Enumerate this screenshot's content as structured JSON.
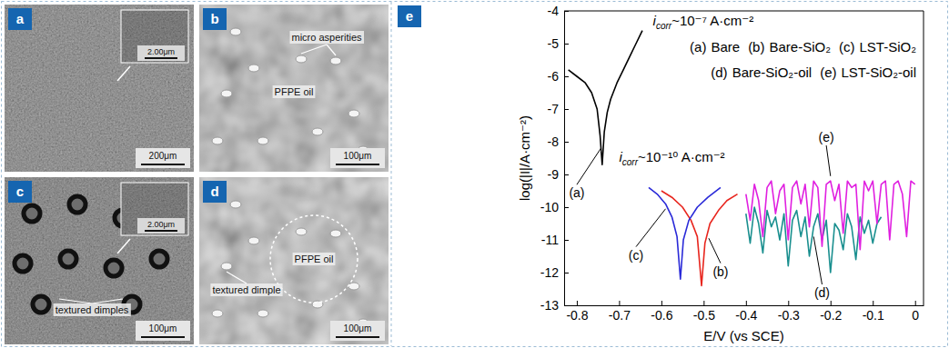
{
  "figure": {
    "panels": [
      {
        "letter": "a",
        "scale_bar": "200μm",
        "inset_scale_bar": "2.00μm",
        "labels": []
      },
      {
        "letter": "b",
        "scale_bar": "100μm",
        "labels": [
          "micro asperities",
          "PFPE oil"
        ]
      },
      {
        "letter": "c",
        "scale_bar": "100μm",
        "inset_scale_bar": "2.00μm",
        "labels": [
          "textured dimples"
        ]
      },
      {
        "letter": "d",
        "scale_bar": "100μm",
        "labels": [
          "textured dimple",
          "PFPE oil"
        ]
      }
    ],
    "chart_panel_letter": "e"
  },
  "chart_data": {
    "type": "line",
    "x_label": "E/V (vs SCE)",
    "y_label": "log(|I|/A·cm⁻²)",
    "xlim": [
      -0.83,
      0.02
    ],
    "xticks": [
      -0.8,
      -0.7,
      -0.6,
      -0.5,
      -0.4,
      -0.3,
      -0.2,
      -0.1,
      0
    ],
    "ylim": [
      -13,
      -4
    ],
    "yticks": [
      -4,
      -5,
      -6,
      -7,
      -8,
      -9,
      -10,
      -11,
      -12,
      -13
    ],
    "legend": "upper right",
    "annotations": [
      {
        "parts": [
          "i",
          "corr",
          "~10⁻⁷ A·cm⁻²"
        ]
      },
      {
        "parts": [
          "i",
          "corr",
          "~10⁻¹⁰ A·cm⁻²"
        ]
      }
    ],
    "series": [
      {
        "label": "(a)",
        "name": "Bare",
        "color": "#000000",
        "x": [
          -0.82,
          -0.8,
          -0.78,
          -0.765,
          -0.752,
          -0.745,
          -0.74,
          -0.735,
          -0.728,
          -0.72,
          -0.705,
          -0.69,
          -0.675,
          -0.66,
          -0.645
        ],
        "values": [
          -5.8,
          -6.0,
          -6.2,
          -6.5,
          -7.0,
          -7.8,
          -8.7,
          -7.7,
          -7.1,
          -6.7,
          -6.2,
          -5.8,
          -5.4,
          -5.0,
          -4.6
        ]
      },
      {
        "label": "(b)",
        "name": "Bare-SiO₂",
        "color": "#e8261e",
        "x": [
          -0.6,
          -0.575,
          -0.55,
          -0.53,
          -0.515,
          -0.505,
          -0.497,
          -0.485,
          -0.465,
          -0.445,
          -0.42
        ],
        "values": [
          -9.5,
          -9.7,
          -10.0,
          -10.4,
          -10.9,
          -12.4,
          -11.1,
          -10.5,
          -10.1,
          -9.8,
          -9.6
        ]
      },
      {
        "label": "(c)",
        "name": "LST-SiO₂",
        "color": "#2a2ad8",
        "x": [
          -0.63,
          -0.61,
          -0.59,
          -0.575,
          -0.563,
          -0.555,
          -0.548,
          -0.535,
          -0.515,
          -0.49,
          -0.46
        ],
        "values": [
          -9.4,
          -9.6,
          -9.9,
          -10.3,
          -10.9,
          -12.2,
          -11.0,
          -10.4,
          -10.0,
          -9.7,
          -9.4
        ]
      },
      {
        "label": "(d)",
        "name": "Bare-SiO₂-oil",
        "color": "#1a8f8f",
        "x": [
          -0.4,
          -0.39,
          -0.38,
          -0.37,
          -0.36,
          -0.35,
          -0.34,
          -0.33,
          -0.32,
          -0.31,
          -0.3,
          -0.29,
          -0.28,
          -0.27,
          -0.26,
          -0.25,
          -0.24,
          -0.23,
          -0.22,
          -0.21,
          -0.2,
          -0.19,
          -0.18,
          -0.17,
          -0.16,
          -0.15,
          -0.14,
          -0.13,
          -0.12,
          -0.11,
          -0.1,
          -0.09,
          -0.08
        ],
        "values": [
          -10.2,
          -11.1,
          -10.0,
          -10.5,
          -11.4,
          -10.1,
          -10.6,
          -10.3,
          -11.0,
          -10.2,
          -11.8,
          -10.4,
          -10.1,
          -10.9,
          -10.3,
          -11.5,
          -10.6,
          -10.2,
          -11.0,
          -10.4,
          -12.0,
          -10.5,
          -10.7,
          -11.3,
          -10.2,
          -10.6,
          -11.6,
          -10.3,
          -10.8,
          -10.4,
          -11.1,
          -10.5,
          -10.3
        ]
      },
      {
        "label": "(e)",
        "name": "LST-SiO₂-oil",
        "color": "#e020e0",
        "x": [
          -0.4,
          -0.39,
          -0.38,
          -0.37,
          -0.36,
          -0.35,
          -0.34,
          -0.33,
          -0.32,
          -0.31,
          -0.3,
          -0.29,
          -0.28,
          -0.27,
          -0.26,
          -0.25,
          -0.24,
          -0.23,
          -0.22,
          -0.21,
          -0.2,
          -0.19,
          -0.18,
          -0.17,
          -0.16,
          -0.15,
          -0.14,
          -0.13,
          -0.12,
          -0.11,
          -0.1,
          -0.09,
          -0.08,
          -0.07,
          -0.06,
          -0.05,
          -0.04,
          -0.03,
          -0.02,
          -0.01,
          0
        ],
        "values": [
          -9.6,
          -10.4,
          -9.3,
          -9.8,
          -10.9,
          -9.4,
          -9.2,
          -10.2,
          -9.5,
          -9.3,
          -11.0,
          -9.4,
          -9.2,
          -9.9,
          -9.3,
          -10.6,
          -9.2,
          -9.4,
          -11.2,
          -9.3,
          -9.2,
          -9.8,
          -9.3,
          -10.8,
          -9.2,
          -9.4,
          -9.3,
          -11.3,
          -9.2,
          -9.5,
          -9.2,
          -10.5,
          -9.3,
          -9.2,
          -11.0,
          -9.3,
          -9.2,
          -9.6,
          -10.9,
          -9.2,
          -9.3
        ]
      }
    ]
  }
}
